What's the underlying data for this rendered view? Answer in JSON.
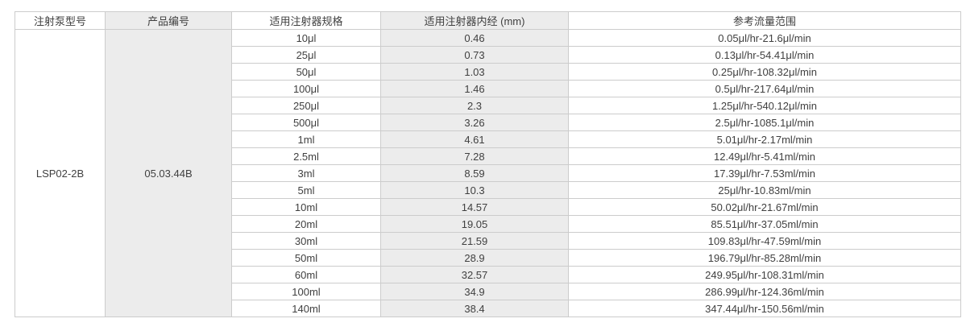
{
  "table": {
    "headers": [
      "注射泵型号",
      "产品编号",
      "适用注射器规格",
      "适用注射器内经 (mm)",
      "参考流量范围"
    ],
    "model": "LSP02-2B",
    "product_code": "05.03.44B",
    "rows": [
      {
        "spec": "10μl",
        "diameter": "0.46",
        "flow_range": "0.05μl/hr-21.6μl/min"
      },
      {
        "spec": "25μl",
        "diameter": "0.73",
        "flow_range": "0.13μl/hr-54.41μl/min"
      },
      {
        "spec": "50μl",
        "diameter": "1.03",
        "flow_range": "0.25μl/hr-108.32μl/min"
      },
      {
        "spec": "100μl",
        "diameter": "1.46",
        "flow_range": "0.5μl/hr-217.64μl/min"
      },
      {
        "spec": "250μl",
        "diameter": "2.3",
        "flow_range": "1.25μl/hr-540.12μl/min"
      },
      {
        "spec": "500μl",
        "diameter": "3.26",
        "flow_range": "2.5μl/hr-1085.1μl/min"
      },
      {
        "spec": "1ml",
        "diameter": "4.61",
        "flow_range": "5.01μl/hr-2.17ml/min"
      },
      {
        "spec": "2.5ml",
        "diameter": "7.28",
        "flow_range": "12.49μl/hr-5.41ml/min"
      },
      {
        "spec": "3ml",
        "diameter": "8.59",
        "flow_range": "17.39μl/hr-7.53ml/min"
      },
      {
        "spec": "5ml",
        "diameter": "10.3",
        "flow_range": "25μl/hr-10.83ml/min"
      },
      {
        "spec": "10ml",
        "diameter": "14.57",
        "flow_range": "50.02μl/hr-21.67ml/min"
      },
      {
        "spec": "20ml",
        "diameter": "19.05",
        "flow_range": "85.51μl/hr-37.05ml/min"
      },
      {
        "spec": "30ml",
        "diameter": "21.59",
        "flow_range": "109.83μl/hr-47.59ml/min"
      },
      {
        "spec": "50ml",
        "diameter": "28.9",
        "flow_range": "196.79μl/hr-85.28ml/min"
      },
      {
        "spec": "60ml",
        "diameter": "32.57",
        "flow_range": "249.95μl/hr-108.31ml/min"
      },
      {
        "spec": "100ml",
        "diameter": "34.9",
        "flow_range": "286.99μl/hr-124.36ml/min"
      },
      {
        "spec": "140ml",
        "diameter": "38.4",
        "flow_range": "347.44μl/hr-150.56ml/min"
      }
    ]
  },
  "colors": {
    "stripe_gray": "#ececec",
    "border": "#cccccc",
    "text": "#404040",
    "background": "#ffffff"
  }
}
